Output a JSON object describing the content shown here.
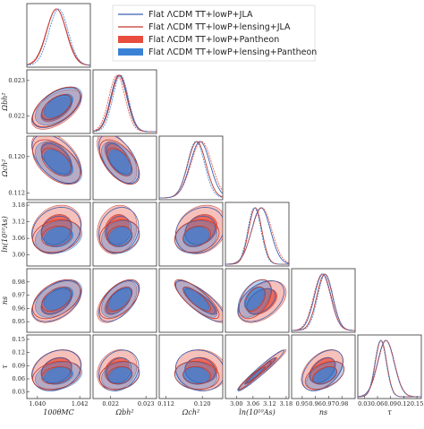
{
  "chart_data": {
    "type": "scatter",
    "title": "",
    "legend_position": "top-right",
    "legend": [
      {
        "label": "Flat ΛCDM TT+lowP+JLA",
        "style": "line",
        "color": "#3a5fb0"
      },
      {
        "label": "Flat ΛCDM TT+lowP+lensing+JLA",
        "style": "line",
        "color": "#c0392b"
      },
      {
        "label": "Flat ΛCDM TT+lowP+Pantheon",
        "style": "fill",
        "color": "#e74c3c"
      },
      {
        "label": "Flat ΛCDM TT+lowP+lensing+Pantheon",
        "style": "fill",
        "color": "#3b82d6"
      }
    ],
    "parameters": [
      {
        "name": "100θ_MC",
        "label": "100θMC",
        "range": [
          1.0395,
          1.0425
        ],
        "ticks": [
          "1.040",
          "1.042"
        ]
      },
      {
        "name": "Ω_b h^2",
        "label": "Ωbh²",
        "range": [
          0.0215,
          0.0233
        ],
        "ticks": [
          "0.022",
          "0.023"
        ]
      },
      {
        "name": "Ω_c h^2",
        "label": "Ωch²",
        "range": [
          0.1105,
          0.1245
        ],
        "ticks": [
          "0.112",
          "0.120"
        ]
      },
      {
        "name": "ln(10^10 A_s)",
        "label": "ln(10¹⁰As)",
        "range": [
          2.96,
          3.19
        ],
        "ticks": [
          "3.00",
          "3.06",
          "3.12",
          "3.18"
        ]
      },
      {
        "name": "n_s",
        "label": "ns",
        "range": [
          0.942,
          0.99
        ],
        "ticks": [
          "0.95",
          "0.96",
          "0.97",
          "0.98"
        ]
      },
      {
        "name": "τ",
        "label": "τ",
        "range": [
          0.015,
          0.16
        ],
        "ticks": [
          "0.03",
          "0.06",
          "0.09",
          "0.12",
          "0.15"
        ]
      }
    ],
    "series": [
      {
        "name": "Flat ΛCDM TT+lowP+JLA",
        "means": [
          1.0409,
          0.02223,
          0.1195,
          3.089,
          0.9655,
          0.079
        ],
        "sigmas": [
          0.00047,
          0.00023,
          0.0022,
          0.034,
          0.0063,
          0.019
        ]
      },
      {
        "name": "Flat ΛCDM TT+lowP+lensing+JLA",
        "means": [
          1.0409,
          0.02225,
          0.1188,
          3.068,
          0.967,
          0.068
        ],
        "sigmas": [
          0.00046,
          0.00023,
          0.002,
          0.024,
          0.006,
          0.013
        ]
      },
      {
        "name": "Flat ΛCDM TT+lowP+Pantheon",
        "means": [
          1.0409,
          0.02218,
          0.1198,
          3.092,
          0.965,
          0.08
        ],
        "sigmas": [
          0.00048,
          0.00023,
          0.0023,
          0.036,
          0.0064,
          0.019
        ]
      },
      {
        "name": "Flat ΛCDM TT+lowP+lensing+Pantheon",
        "means": [
          1.041,
          0.02228,
          0.1186,
          3.065,
          0.9675,
          0.067
        ],
        "sigmas": [
          0.00045,
          0.00022,
          0.0019,
          0.024,
          0.0058,
          0.013
        ]
      }
    ]
  }
}
